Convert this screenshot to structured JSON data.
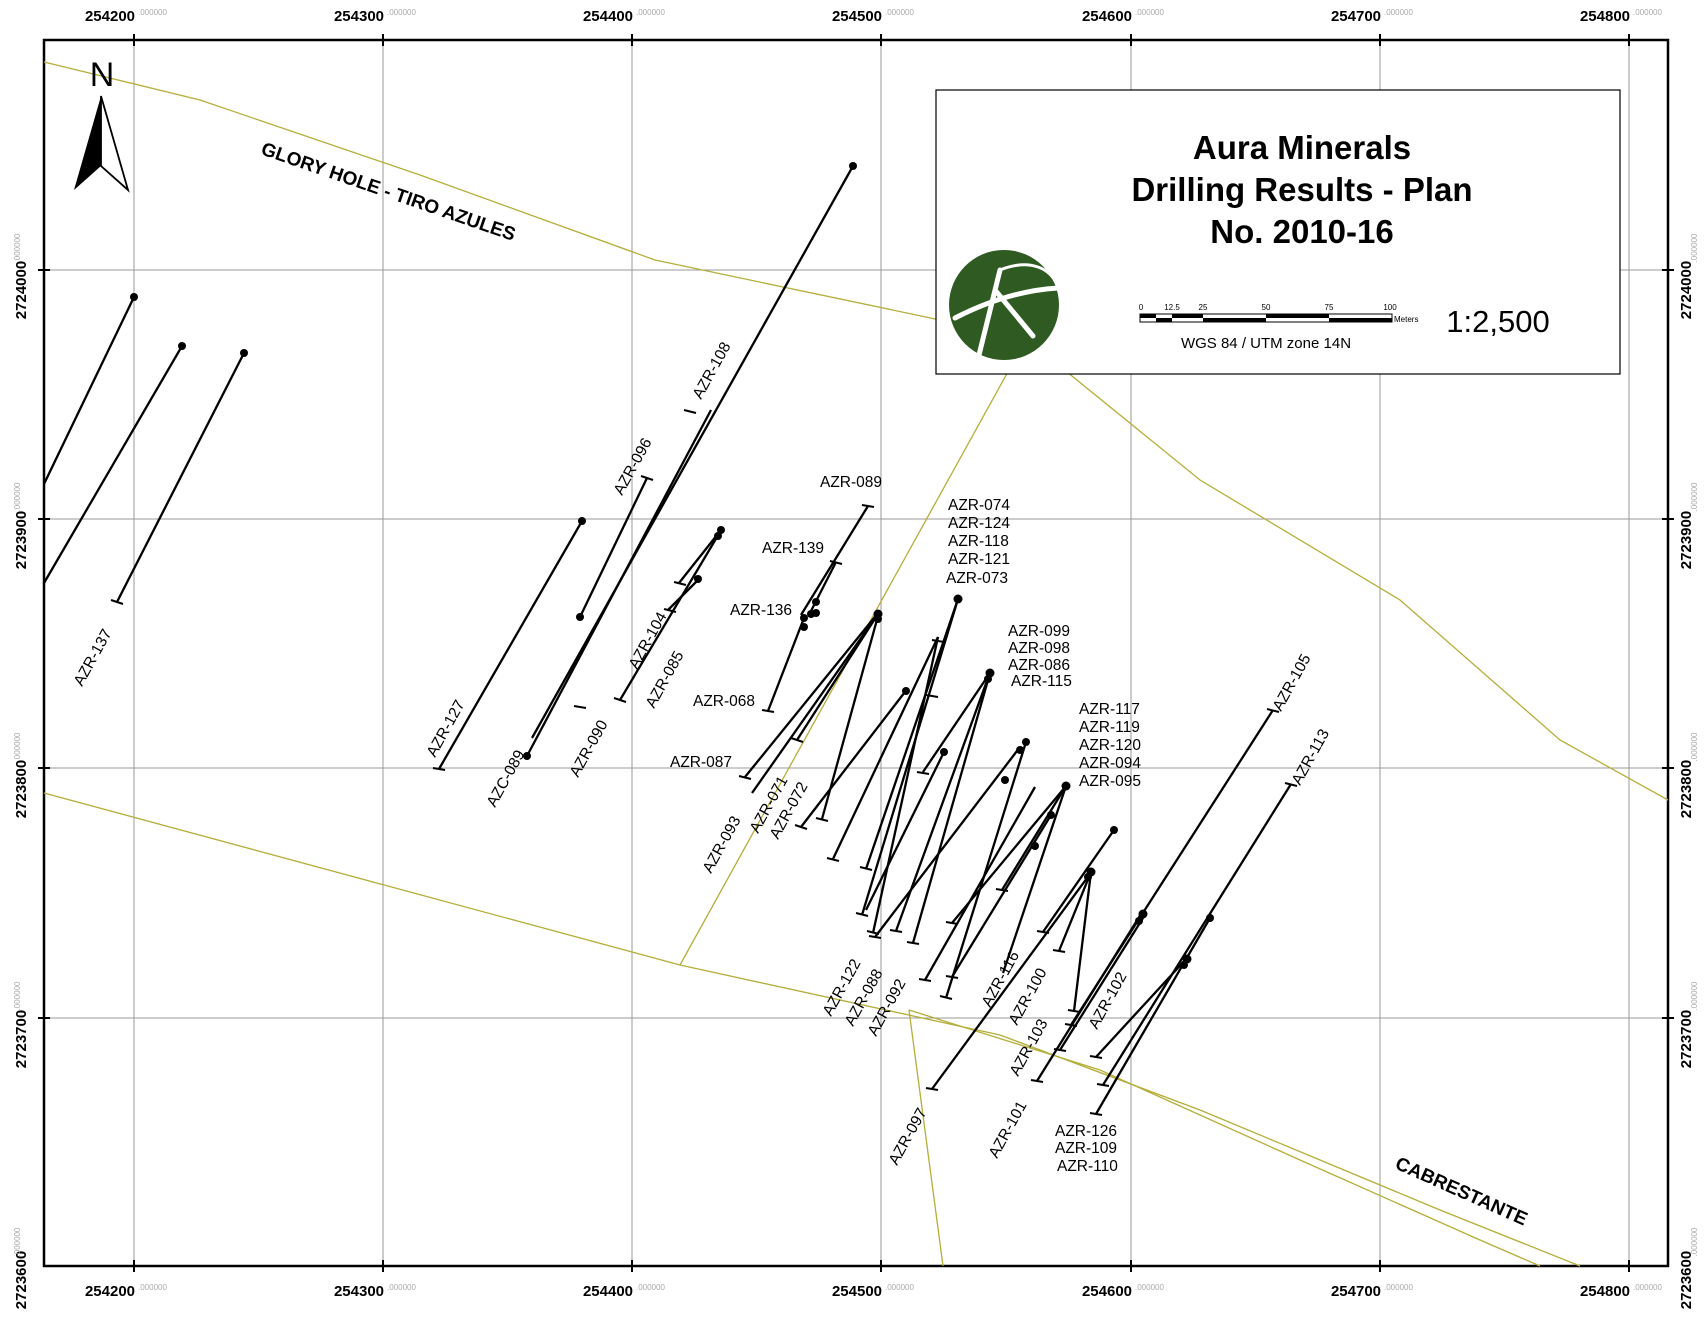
{
  "title": {
    "company": "Aura Minerals",
    "subtitle": "Drilling Results - Plan",
    "number": "No. 2010-16"
  },
  "scale": {
    "ticks": [
      "0",
      "12.5",
      "25",
      "50",
      "75",
      "100"
    ],
    "unit": "Meters",
    "datum": "WGS 84 / UTM zone 14N",
    "ratio": "1:2,500"
  },
  "north_label": "N",
  "grid": {
    "easting_major": [
      "254200",
      "254300",
      "254400",
      "254500",
      "254600",
      "254700",
      "254800"
    ],
    "northing_major": [
      "2724000",
      "2723900",
      "2723800",
      "2723700",
      "2723600"
    ],
    "minor_suffix": ".000000"
  },
  "zones": {
    "glory_hole": "GLORY HOLE - TIRO AZULES",
    "cabrestante": "CABRESTANTE"
  },
  "colors": {
    "zone_lines": "#b5ae3a",
    "logo_green": "#2f5a22",
    "grid": "#9a9a9a"
  },
  "hole_labels": {
    "azr137": "AZR-137",
    "azr127": "AZR-127",
    "azc089": "AZC-089",
    "azr096": "AZR-096",
    "azr108": "AZR-108",
    "azr090": "AZR-090",
    "azr104": "AZR-104",
    "azr085": "AZR-085",
    "azr089": "AZR-089",
    "azr139": "AZR-139",
    "azr136": "AZR-136",
    "azr068": "AZR-068",
    "azr087": "AZR-087",
    "azr093": "AZR-093",
    "azr071": "AZR-071",
    "azr072": "AZR-072",
    "grp1": [
      "AZR-074",
      "AZR-124",
      "AZR-118",
      "AZR-121",
      "AZR-073"
    ],
    "grp2": [
      "AZR-099",
      "AZR-098",
      "AZR-086",
      "AZR-115"
    ],
    "grp3": [
      "AZR-117",
      "AZR-119",
      "AZR-120",
      "AZR-094",
      "AZR-095"
    ],
    "azr122": "AZR-122",
    "azr088": "AZR-088",
    "azr092": "AZR-092",
    "azr116": "AZR-116",
    "azr100": "AZR-100",
    "azr103": "AZR-103",
    "azr097": "AZR-097",
    "azr101": "AZR-101",
    "azr102": "AZR-102",
    "azr105": "AZR-105",
    "azr113": "AZR-113",
    "grp4": [
      "AZR-126",
      "AZR-109",
      "AZR-110"
    ]
  }
}
